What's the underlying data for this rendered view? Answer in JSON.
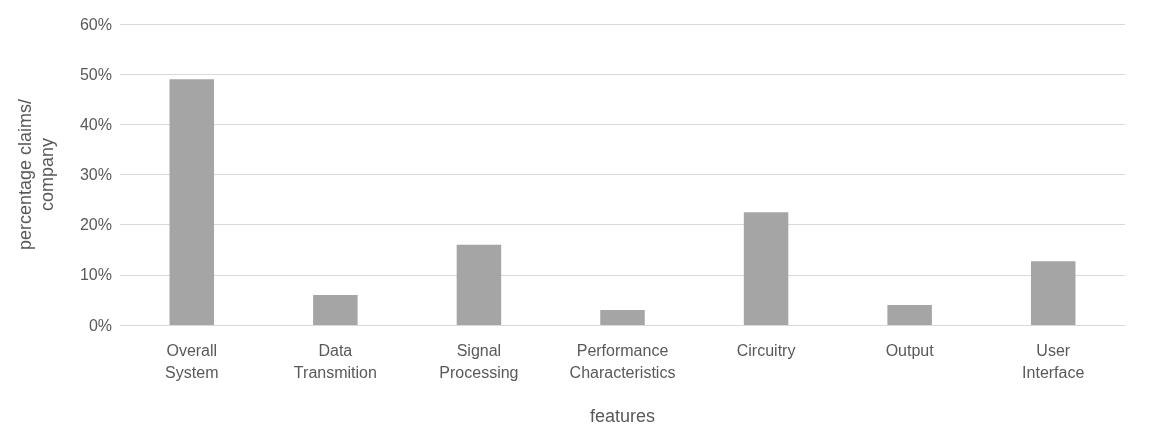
{
  "chart_data": {
    "type": "bar",
    "xlabel": "features",
    "ylabel": "percentage claims/ company",
    "categories": [
      "Overall System",
      "Data Transmition",
      "Signal Processing",
      "Performance Characteristics",
      "Circuitry",
      "Output",
      "User Interface"
    ],
    "values": [
      49,
      6,
      16,
      3,
      22.5,
      4,
      12.7
    ],
    "color": "#a5a5a5",
    "ylim": [
      0,
      60
    ],
    "yticks": [
      {
        "value": 0,
        "label": "0%"
      },
      {
        "value": 10,
        "label": "10%"
      },
      {
        "value": 20,
        "label": "20%"
      },
      {
        "value": 30,
        "label": "30%"
      },
      {
        "value": 40,
        "label": "40%"
      },
      {
        "value": 50,
        "label": "50%"
      },
      {
        "value": 60,
        "label": "60%"
      }
    ],
    "grid": "y"
  }
}
